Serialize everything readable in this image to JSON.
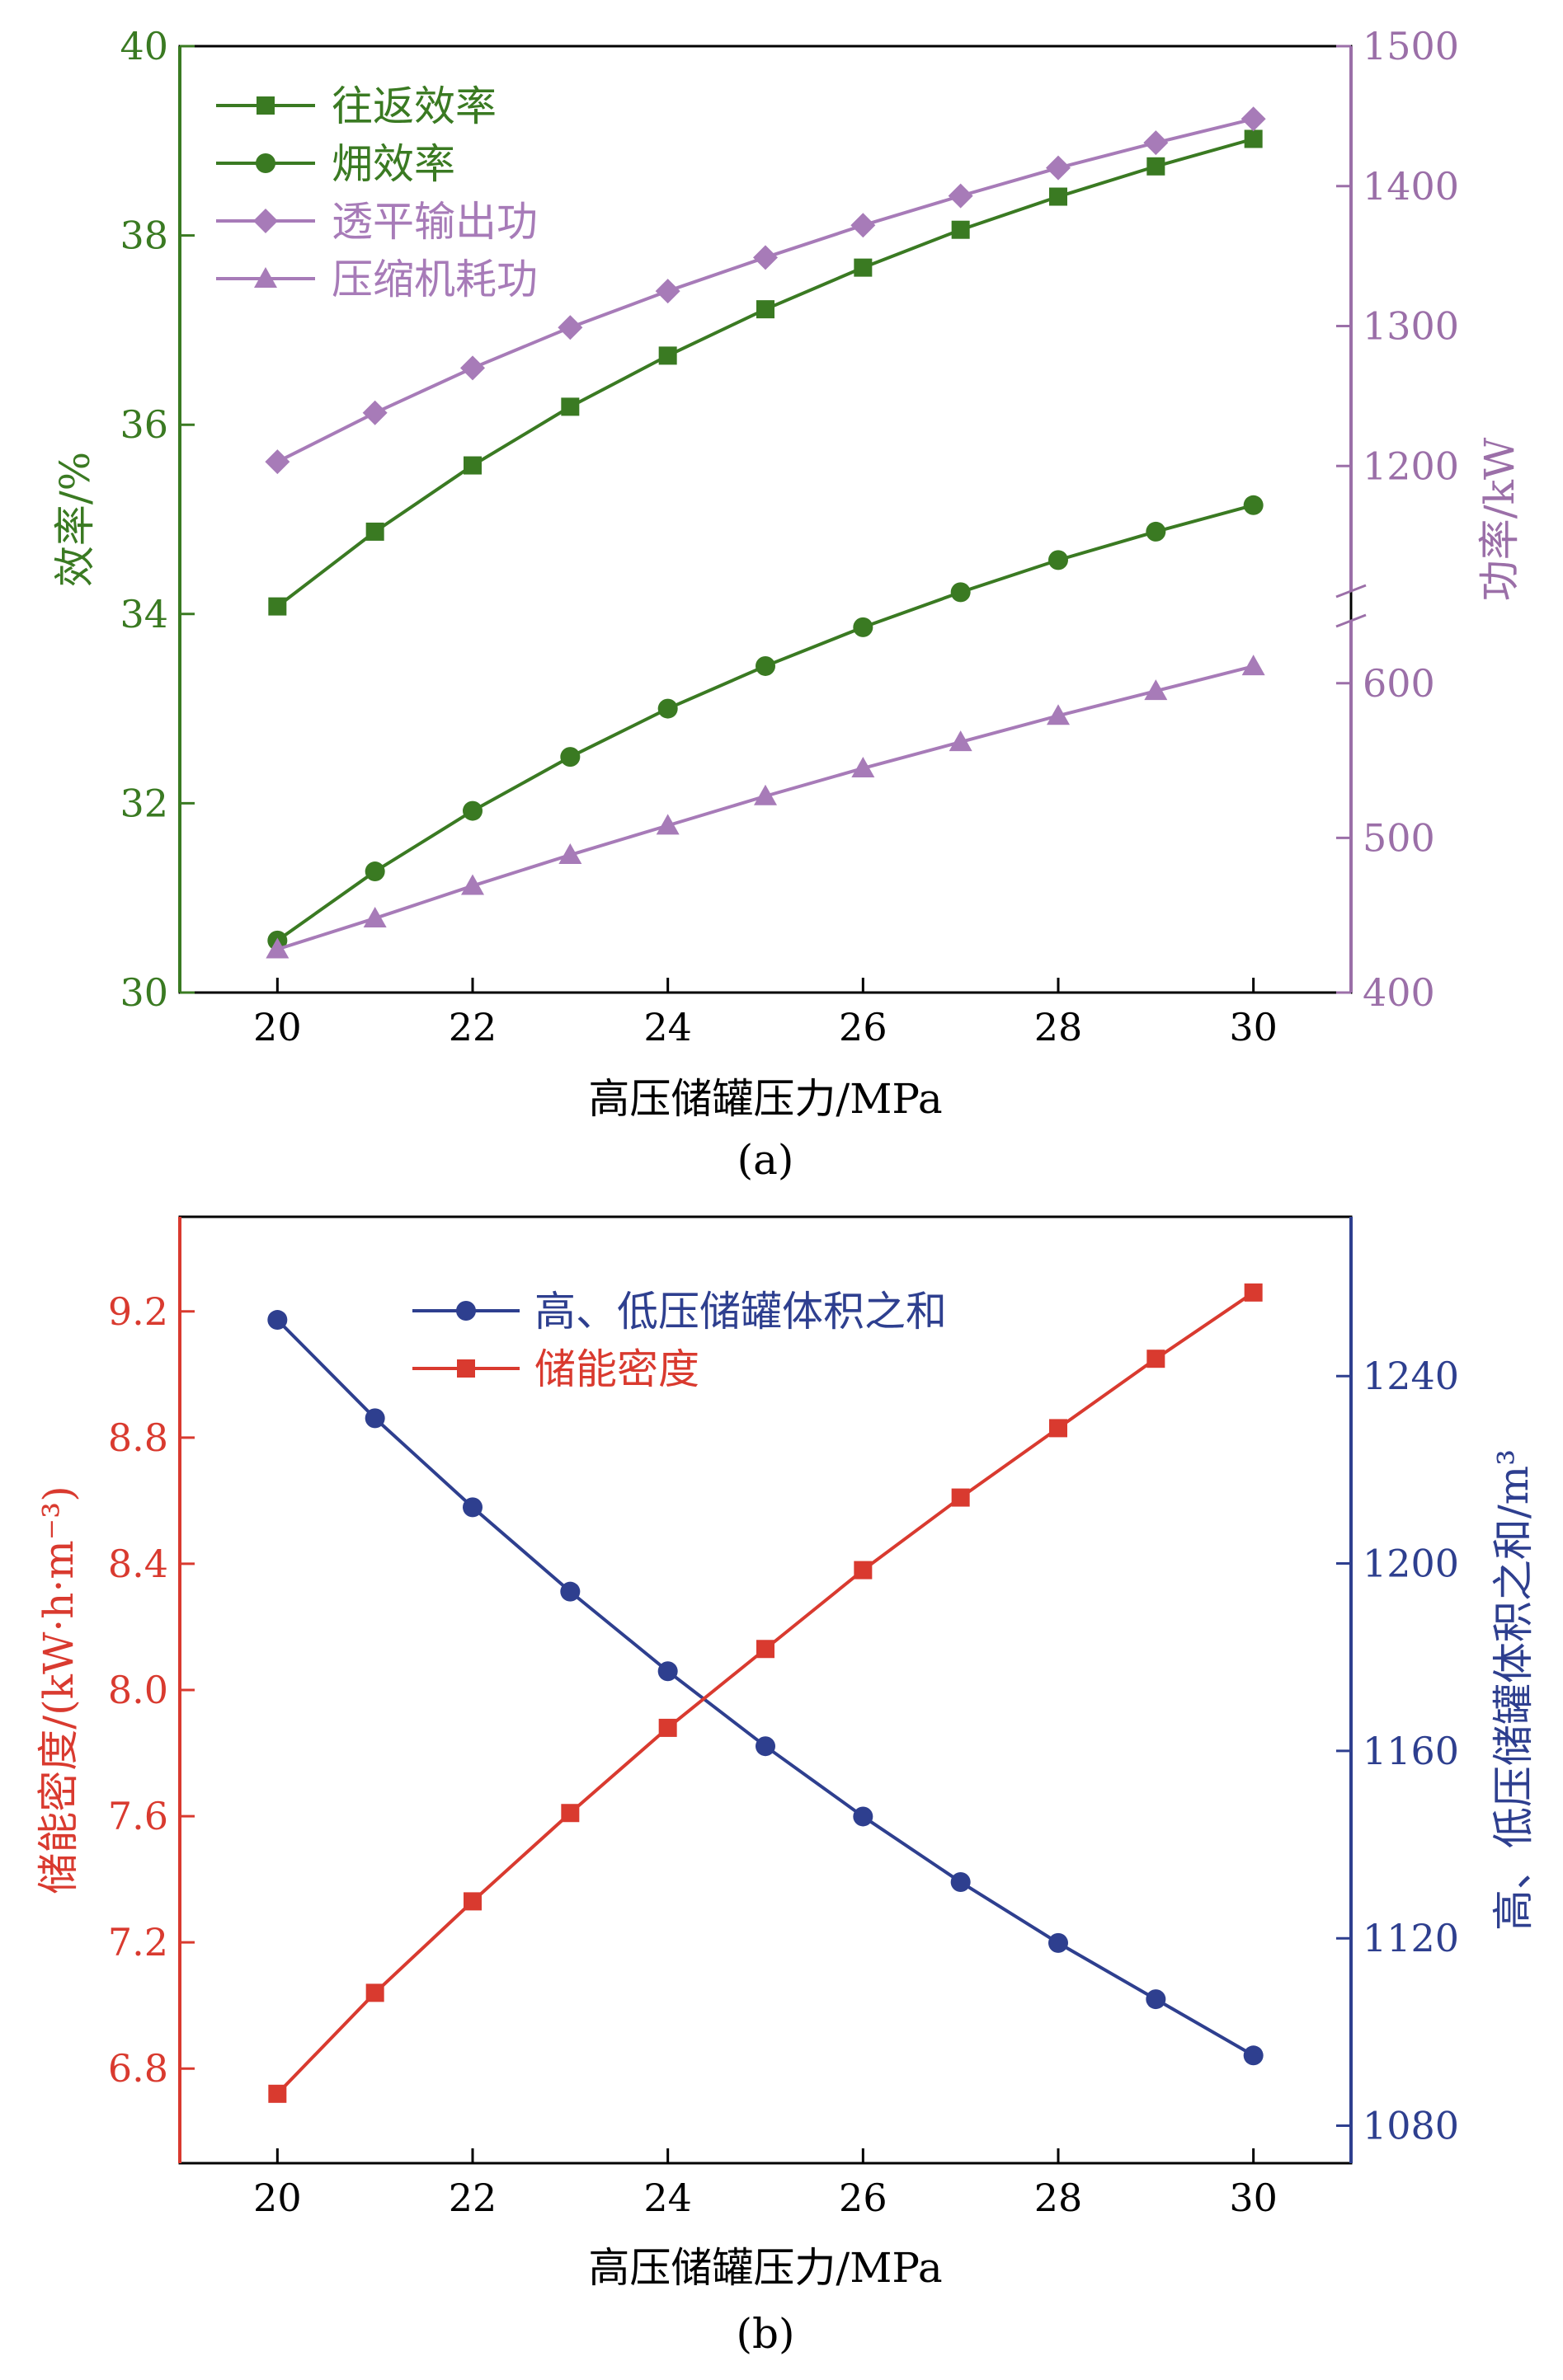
{
  "panel_a": {
    "label": "(a)",
    "xlabel": "高压储罐压力/MPa",
    "ylabel_left": "效率/%",
    "ylabel_right": "功率/kW",
    "colors": {
      "left_axis": "#3a7a22",
      "right_axis": "#9b6fa8",
      "green_series": "#3a7a22",
      "purple_series": "#a77bb8"
    }
  },
  "panel_b": {
    "label": "(b)",
    "xlabel": "高压储罐压力/MPa",
    "ylabel_left": "储能密度/(kW·h·m⁻³)",
    "ylabel_right": "高、低压储罐体积之和/m³",
    "colors": {
      "left_axis": "#d93a2f",
      "right_axis": "#2e3f8f"
    }
  },
  "chart_data": [
    {
      "type": "line",
      "panel": "a",
      "x": [
        20,
        21,
        22,
        23,
        24,
        25,
        26,
        27,
        28,
        29,
        30
      ],
      "xlim": [
        19,
        31
      ],
      "xticks": [
        20,
        22,
        24,
        26,
        28,
        30
      ],
      "ylim_left": [
        30,
        40
      ],
      "yticks_left": [
        30,
        32,
        34,
        36,
        38,
        40
      ],
      "ylim_right_lower": [
        400,
        650
      ],
      "ylim_right_upper": [
        1100,
        1500
      ],
      "yticks_right_lower": [
        400,
        500,
        600
      ],
      "yticks_right_upper": [
        1200,
        1300,
        1400,
        1500
      ],
      "right_axis_break": true,
      "legend_position": "top-left",
      "series": [
        {
          "name": "往返效率",
          "axis": "left",
          "marker": "square",
          "color": "#3a7a22",
          "values": [
            34.08,
            34.87,
            35.57,
            36.19,
            36.73,
            37.22,
            37.66,
            38.06,
            38.41,
            38.73,
            39.02
          ]
        },
        {
          "name": "㶲效率",
          "axis": "left",
          "marker": "circle",
          "color": "#3a7a22",
          "values": [
            30.55,
            31.28,
            31.92,
            32.49,
            33.0,
            33.45,
            33.86,
            34.23,
            34.57,
            34.87,
            35.15
          ]
        },
        {
          "name": "透平输出功",
          "axis": "right",
          "marker": "diamond",
          "color": "#a77bb8",
          "values": [
            1203,
            1238,
            1270,
            1299,
            1325,
            1349,
            1372,
            1393,
            1413,
            1431,
            1448
          ]
        },
        {
          "name": "压缩机耗功",
          "axis": "right",
          "marker": "triangle",
          "color": "#a77bb8",
          "values": [
            428,
            448,
            469,
            489,
            508,
            527,
            545,
            562,
            579,
            595,
            611
          ]
        }
      ]
    },
    {
      "type": "line",
      "panel": "b",
      "x": [
        20,
        21,
        22,
        23,
        24,
        25,
        26,
        27,
        28,
        29,
        30
      ],
      "xlim": [
        19,
        31
      ],
      "xticks": [
        20,
        22,
        24,
        26,
        28,
        30
      ],
      "ylim_left": [
        6.5,
        9.5
      ],
      "yticks_left": [
        "6.8",
        "7.2",
        "7.6",
        "8.0",
        "8.4",
        "8.8",
        "9.2"
      ],
      "ylim_right": [
        1072,
        1274
      ],
      "yticks_right": [
        1080,
        1120,
        1160,
        1200,
        1240
      ],
      "legend_position": "top-center",
      "series": [
        {
          "name": "高、低压储罐体积之和",
          "axis": "right",
          "marker": "circle",
          "color": "#2e3f8f",
          "values": [
            1252,
            1231,
            1212,
            1194,
            1177,
            1161,
            1146,
            1132,
            1119,
            1107,
            1095
          ]
        },
        {
          "name": "储能密度",
          "axis": "left",
          "marker": "square",
          "color": "#d93a2f",
          "values": [
            6.72,
            7.04,
            7.33,
            7.61,
            7.88,
            8.13,
            8.38,
            8.61,
            8.83,
            9.05,
            9.26
          ]
        }
      ]
    }
  ]
}
